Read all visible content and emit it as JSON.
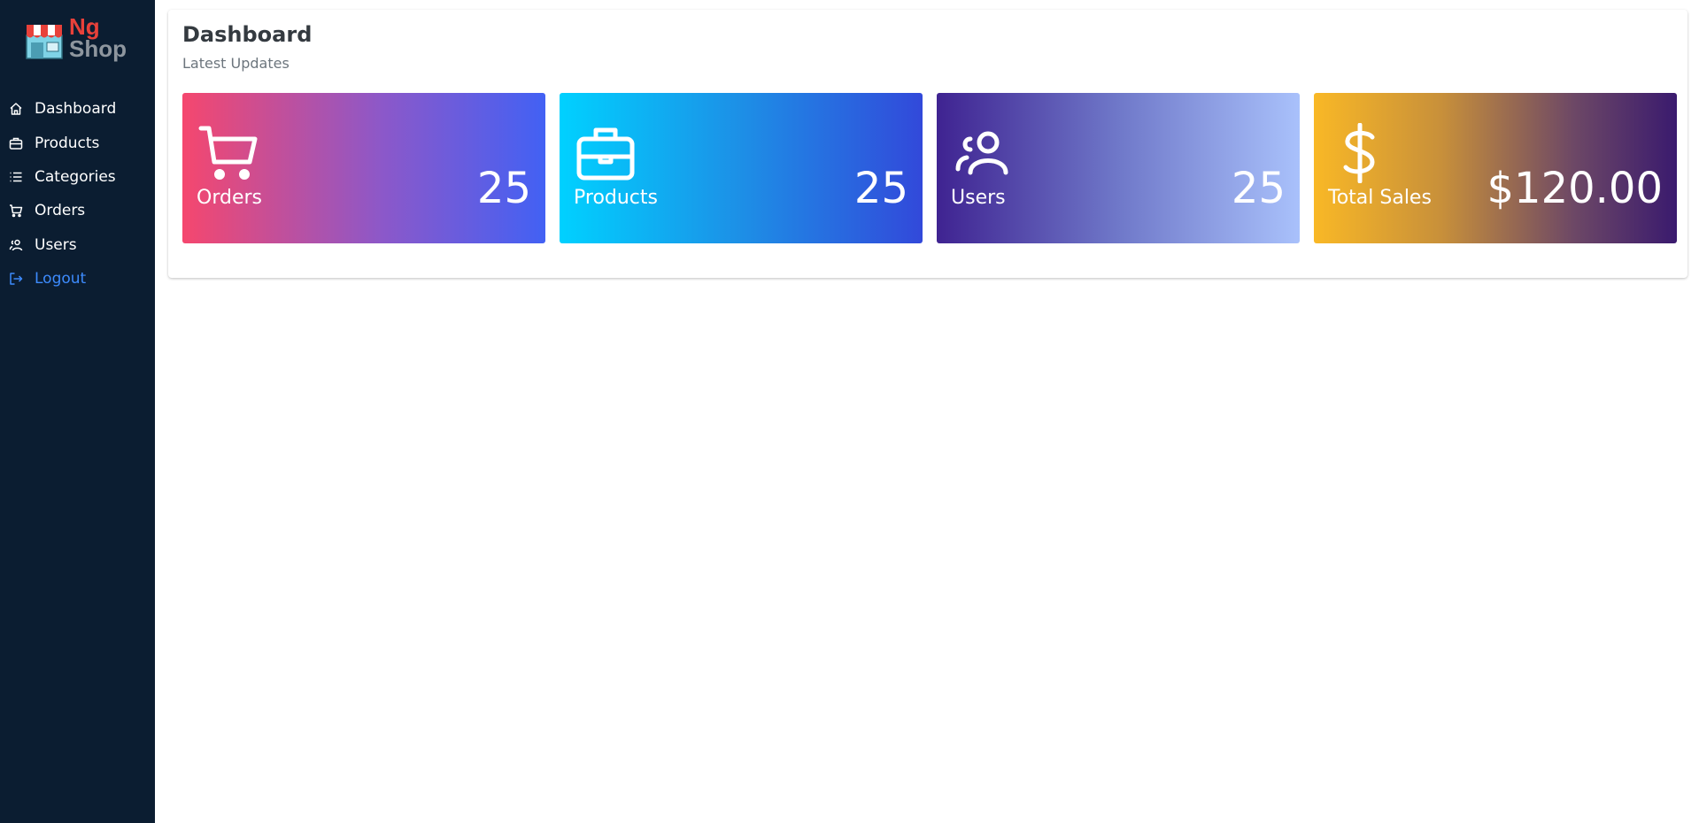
{
  "logo": {
    "line1": "Ng",
    "line2": "Shop"
  },
  "nav": {
    "items": [
      {
        "label": "Dashboard",
        "icon": "home-icon"
      },
      {
        "label": "Products",
        "icon": "briefcase-icon"
      },
      {
        "label": "Categories",
        "icon": "list-icon"
      },
      {
        "label": "Orders",
        "icon": "cart-icon"
      },
      {
        "label": "Users",
        "icon": "users-icon"
      },
      {
        "label": "Logout",
        "icon": "logout-icon"
      }
    ]
  },
  "page": {
    "title": "Dashboard",
    "subtitle": "Latest Updates"
  },
  "stats": [
    {
      "label": "Orders",
      "value": "25",
      "icon": "cart-icon"
    },
    {
      "label": "Products",
      "value": "25",
      "icon": "briefcase-icon"
    },
    {
      "label": "Users",
      "value": "25",
      "icon": "users-icon"
    },
    {
      "label": "Total Sales",
      "value": "$120.00",
      "icon": "dollar-icon"
    }
  ],
  "colors": {
    "sidebar_bg": "#0b1d31",
    "logout_link": "#3d8bfd",
    "logo_ng": "#e8413a",
    "logo_shop": "#8e969e"
  }
}
